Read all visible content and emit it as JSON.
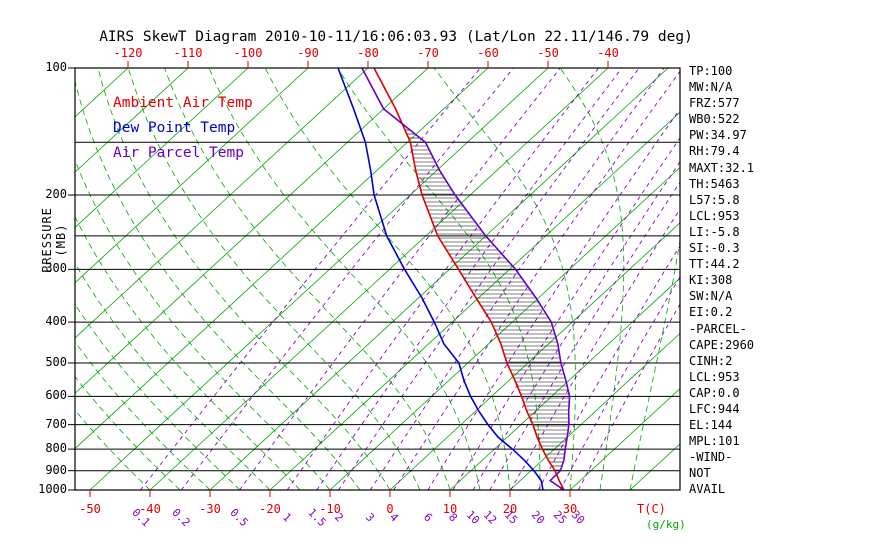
{
  "chart_data": {
    "type": "line",
    "title": "AIRS SkewT Diagram 2010-10-11/16:06:03.93 (Lat/Lon 22.11/146.79 deg)",
    "axes": {
      "pressure": {
        "label": "PRESSURE (MB)",
        "scale": "log-inverted",
        "range": [
          100,
          1000
        ],
        "ticks": [
          100,
          200,
          300,
          400,
          500,
          600,
          700,
          800,
          900,
          1000
        ]
      },
      "temp_top": {
        "description": "temperature (C) where isotherms cross 100 MB",
        "ticks": [
          -120,
          -110,
          -100,
          -90,
          -80,
          -70,
          -60,
          -50,
          -40
        ]
      },
      "temp_bottom": {
        "label": "T(C)",
        "description": "temperature (C) where isotherms cross 1000 MB",
        "ticks": [
          -50,
          -40,
          -30,
          -20,
          -10,
          0,
          10,
          20,
          30
        ]
      },
      "mixing_ratio": {
        "label": "(g/kg)",
        "ticks": [
          0.1,
          0.2,
          0.5,
          1,
          1.5,
          2,
          3,
          4,
          6,
          8,
          10,
          12,
          15,
          20,
          25,
          30
        ]
      }
    },
    "pressures_mb": [
      100,
      125,
      150,
      175,
      200,
      250,
      300,
      350,
      400,
      450,
      500,
      550,
      600,
      650,
      700,
      750,
      800,
      850,
      900,
      950,
      1000
    ],
    "series": [
      {
        "name": "Ambient Air Temp",
        "color": "#e00000",
        "values": [
          -79,
          -68,
          -59.5,
          -53.5,
          -48,
          -38,
          -28.5,
          -20.5,
          -13.5,
          -8,
          -3.5,
          1,
          5,
          8.5,
          12,
          15,
          18,
          21,
          24,
          26.5,
          29
        ]
      },
      {
        "name": "Dew Point Temp",
        "color": "#0000cc",
        "values": [
          -85,
          -75,
          -67,
          -61,
          -56,
          -46.5,
          -37.5,
          -29.5,
          -23,
          -17.5,
          -11.5,
          -7.5,
          -3.5,
          0.5,
          4.5,
          8.5,
          13,
          17,
          20.5,
          23.5,
          25.5
        ]
      },
      {
        "name": "Air Parcel Temp",
        "color": "#6600cc",
        "values": [
          -81,
          -70,
          -57,
          -49.5,
          -42.5,
          -30,
          -19,
          -10.5,
          -3.5,
          1.5,
          5.5,
          9.5,
          13,
          15.5,
          18,
          20,
          21.8,
          23.6,
          24.9,
          25,
          29
        ]
      }
    ],
    "background": {
      "isotherms_c": {
        "min": -150,
        "max": 40,
        "step": 10,
        "style": "solid green"
      },
      "moist_adiabats_start_c": {
        "min": -40,
        "max": 40,
        "step": 5,
        "style": "dashed green"
      },
      "mixing_ratio_lines": "dashed purple, at mixing_ratio ticks",
      "pressure_lines_mb": [
        100,
        150,
        200,
        250,
        300,
        400,
        500,
        600,
        700,
        800,
        900,
        1000
      ]
    },
    "cape_hatch": "horizontal black hatching between Ambient Air Temp and Air Parcel Temp curves where parcel is warmer (~945 MB up to ~140 MB)"
  },
  "stats": {
    "lines": [
      "TP:100",
      "MW:N/A",
      "FRZ:577",
      "WB0:522",
      "PW:34.97",
      "RH:79.4",
      "MAXT:32.1",
      "TH:5463",
      "L57:5.8",
      "LCL:953",
      "LI:-5.8",
      "SI:-0.3",
      "TT:44.2",
      "KI:308",
      "SW:N/A",
      "EI:0.2",
      "-PARCEL-",
      "CAPE:2960",
      "CINH:2",
      "LCL:953",
      "CAP:0.0",
      "LFC:944",
      "EL:144",
      "MPL:101",
      "-WIND-",
      "NOT",
      "AVAIL"
    ]
  },
  "colors": {
    "isotherm": "#00a800",
    "moist_adiabat": "#00a800",
    "mixing_ratio": "#8800cc",
    "temp_labels": "#e00000",
    "axis": "#000000",
    "background": "#ffffff"
  }
}
